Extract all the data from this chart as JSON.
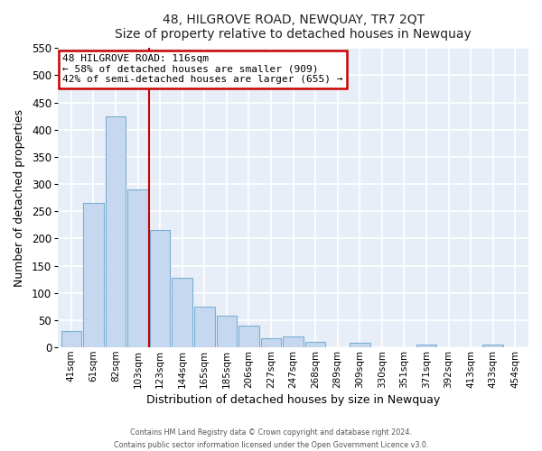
{
  "title": "48, HILGROVE ROAD, NEWQUAY, TR7 2QT",
  "subtitle": "Size of property relative to detached houses in Newquay",
  "xlabel": "Distribution of detached houses by size in Newquay",
  "ylabel": "Number of detached properties",
  "bar_labels": [
    "41sqm",
    "61sqm",
    "82sqm",
    "103sqm",
    "123sqm",
    "144sqm",
    "165sqm",
    "185sqm",
    "206sqm",
    "227sqm",
    "247sqm",
    "268sqm",
    "289sqm",
    "309sqm",
    "330sqm",
    "351sqm",
    "371sqm",
    "392sqm",
    "413sqm",
    "433sqm",
    "454sqm"
  ],
  "bar_values": [
    30,
    265,
    425,
    290,
    215,
    128,
    75,
    58,
    40,
    17,
    20,
    10,
    0,
    8,
    0,
    0,
    6,
    0,
    0,
    5,
    0
  ],
  "bar_color": "#c5d8f0",
  "bar_edgecolor": "#7bafd4",
  "vline_color": "#cc0000",
  "ylim": [
    0,
    550
  ],
  "yticks": [
    0,
    50,
    100,
    150,
    200,
    250,
    300,
    350,
    400,
    450,
    500,
    550
  ],
  "annotation_title": "48 HILGROVE ROAD: 116sqm",
  "annotation_line1": "← 58% of detached houses are smaller (909)",
  "annotation_line2": "42% of semi-detached houses are larger (655) →",
  "annotation_box_color": "#ffffff",
  "annotation_box_edgecolor": "#cc0000",
  "footer_line1": "Contains HM Land Registry data © Crown copyright and database right 2024.",
  "footer_line2": "Contains public sector information licensed under the Open Government Licence v3.0.",
  "plot_bg_color": "#e8eef7",
  "fig_bg_color": "#ffffff",
  "grid_color": "#ffffff"
}
